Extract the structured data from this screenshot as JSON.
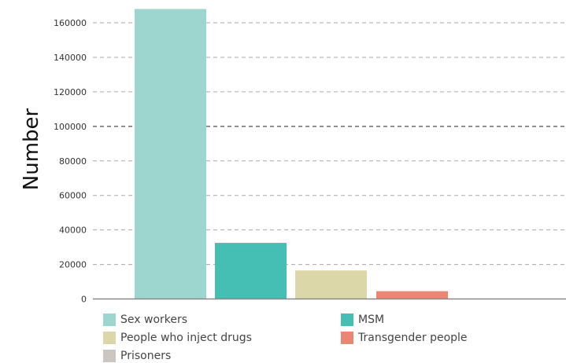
{
  "chart_data": {
    "type": "bar",
    "ylabel": "Number",
    "xlabel": "",
    "ylim": [
      0,
      170000
    ],
    "yticks": [
      0,
      20000,
      40000,
      60000,
      80000,
      100000,
      120000,
      140000,
      160000
    ],
    "grid": true,
    "legend_position": "bottom",
    "series": [
      {
        "name": "Sex workers",
        "value": 168000,
        "color": "#9dd6cf"
      },
      {
        "name": "MSM",
        "value": 32500,
        "color": "#45beb3"
      },
      {
        "name": "People who inject drugs",
        "value": 16500,
        "color": "#dcd7a9"
      },
      {
        "name": "Transgender people",
        "value": 4500,
        "color": "#eb8674"
      },
      {
        "name": "Prisoners",
        "value": null,
        "color": "#cbc6c1"
      }
    ]
  }
}
